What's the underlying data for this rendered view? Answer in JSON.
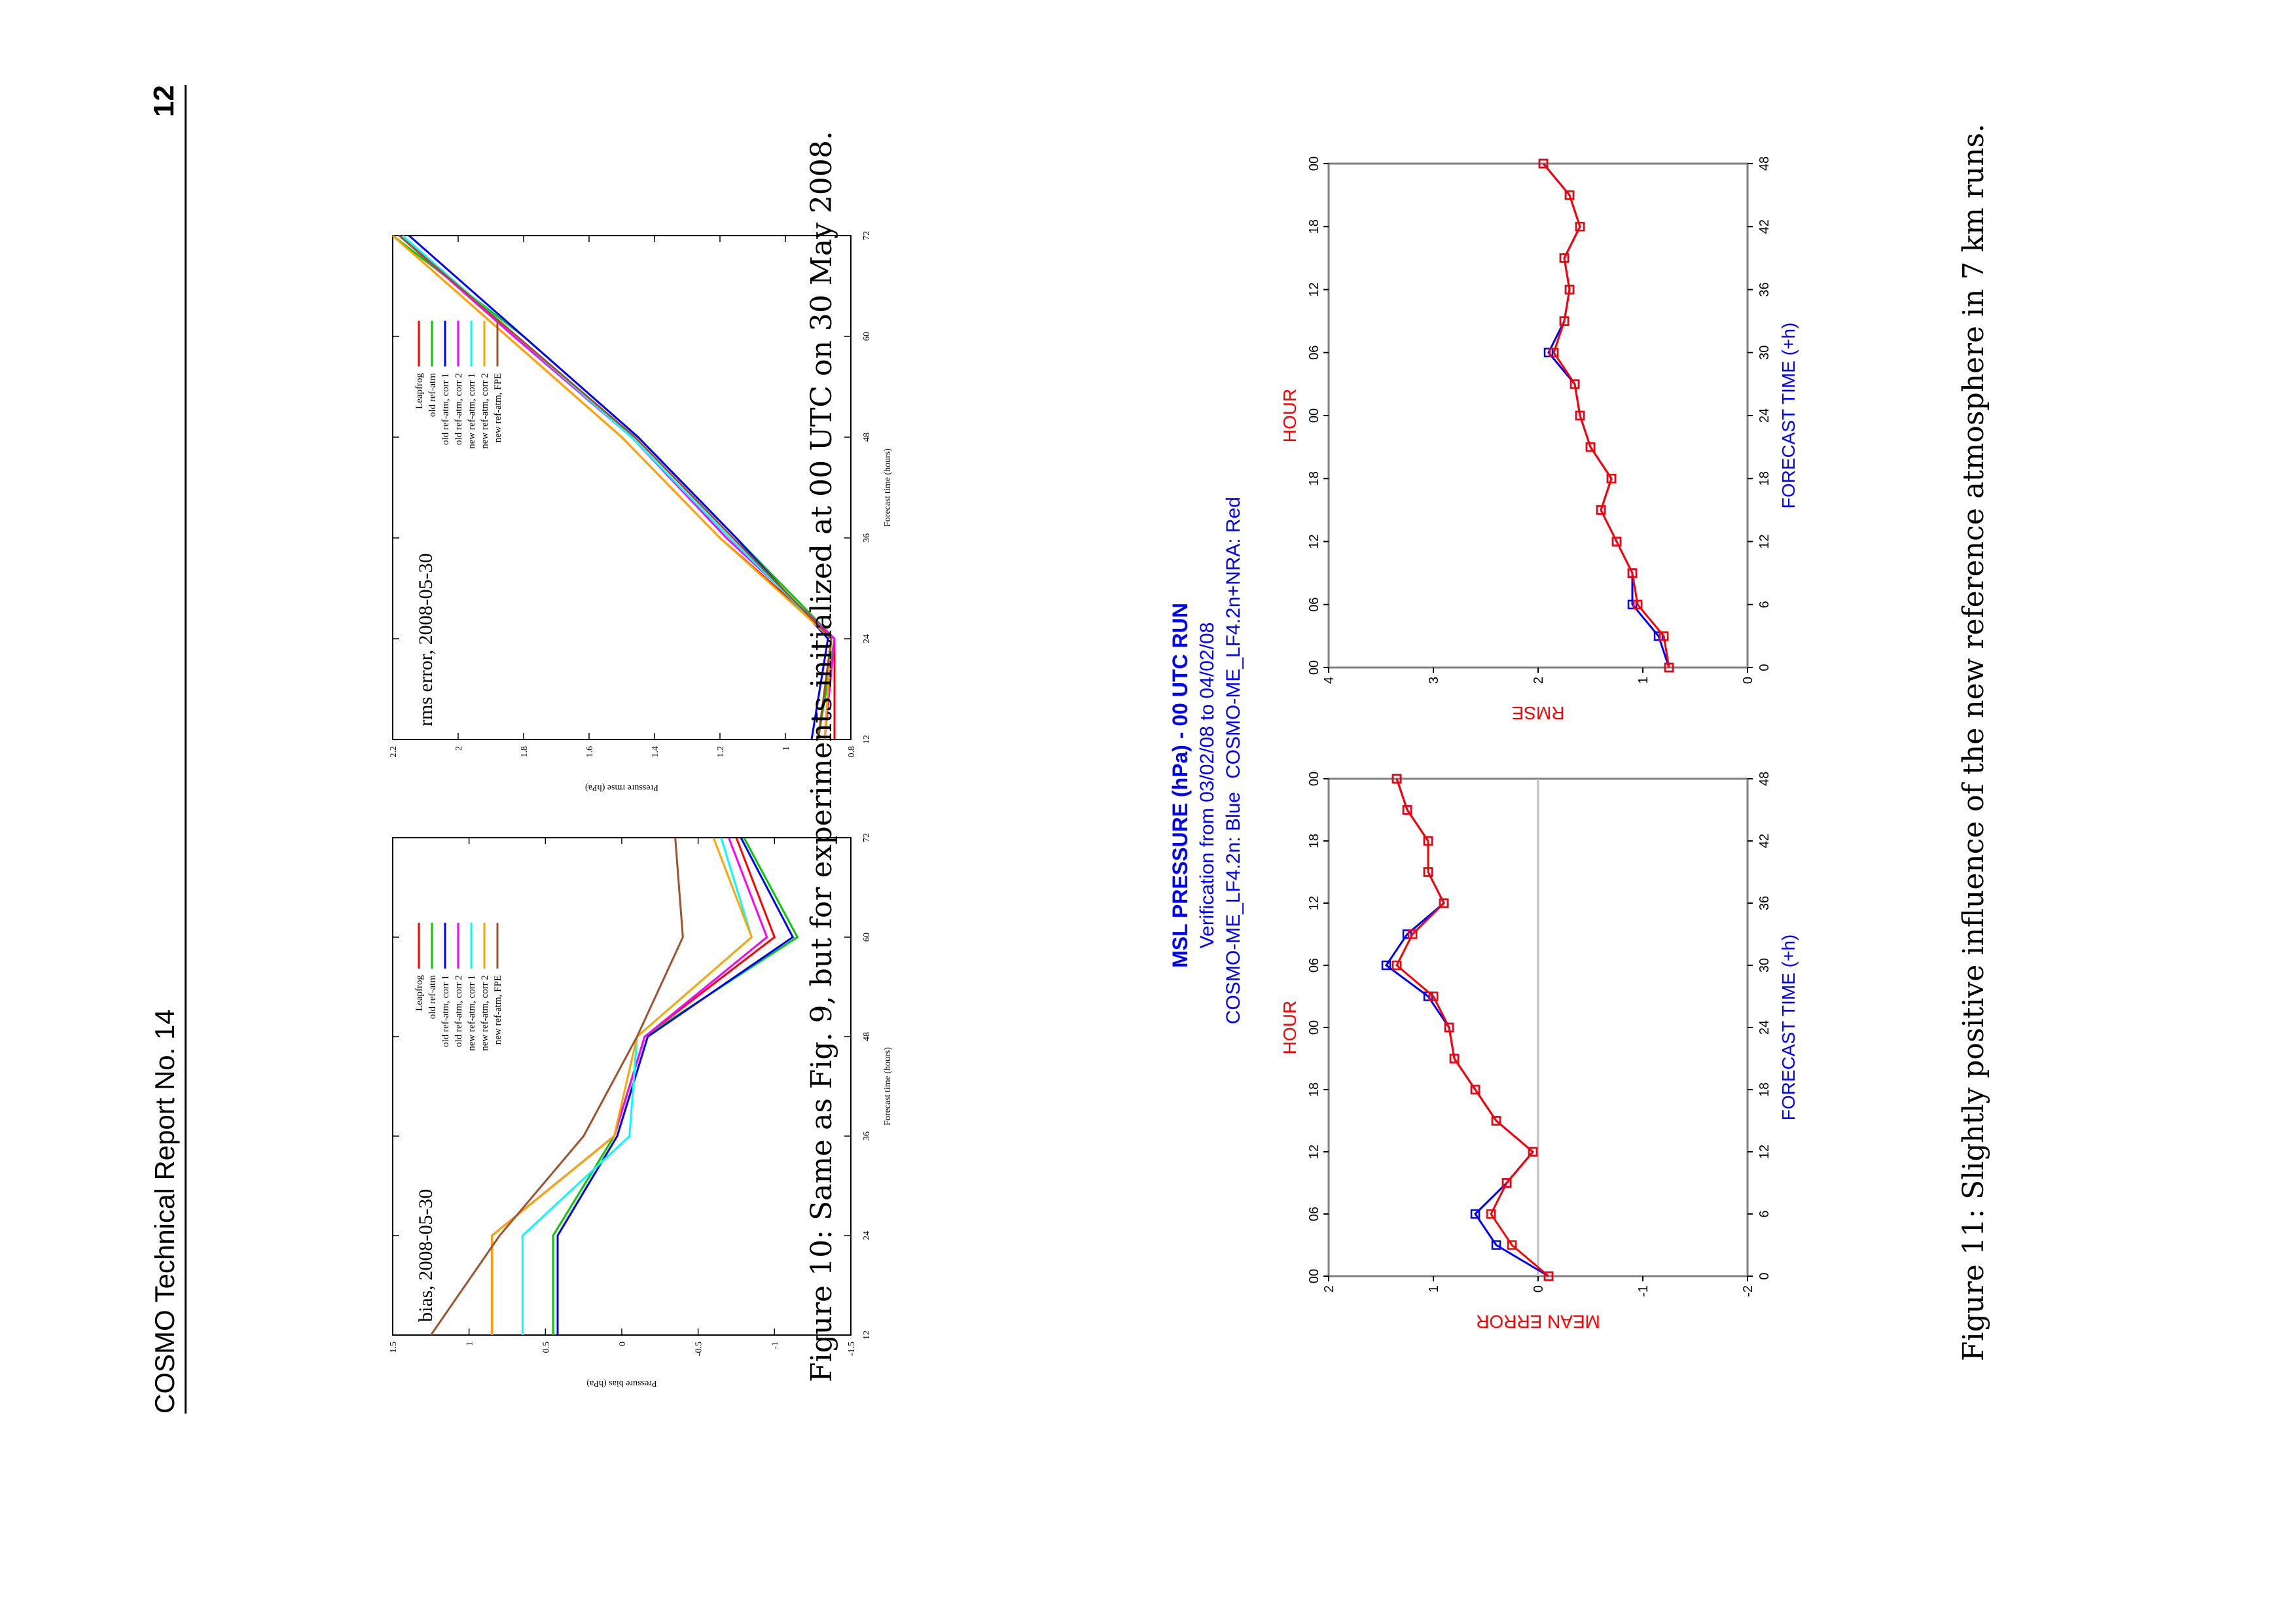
{
  "header": {
    "left": "COSMO Technical Report No. 14",
    "right": "12"
  },
  "fig10": {
    "caption": "Figure 10: Same as Fig. 9, but for experiments initialized at 00 UTC on 30 May 2008."
  },
  "fig11": {
    "caption": "Figure 11: Slightly positive influence of the new reference atmosphere in 7 km runs.",
    "title_line1": "MSL PRESSURE (hPa) - 00 UTC RUN",
    "title_line2": "Verification from 03/02/08 to 04/02/08",
    "title_line3_blue": "COSMO-ME_LF4.2n: Blue",
    "title_line3_red": "COSMO-ME_LF4.2n+NRA: Red"
  },
  "chart_data": [
    {
      "type": "line",
      "title": "bias, 2008-05-30",
      "xlabel": "Forecast time (hours)",
      "ylabel": "Pressure bias (hPa)",
      "xlim": [
        12,
        72
      ],
      "ylim": [
        -1.5,
        1.5
      ],
      "xticks": [
        "12",
        "24",
        "36",
        "48",
        "60",
        "72"
      ],
      "yticks": [
        "-1.5",
        "-1",
        "-0.5",
        "0",
        "0.5",
        "1",
        "1.5"
      ],
      "legend_position": "top-right",
      "x": [
        12,
        24,
        36,
        48,
        60,
        72
      ],
      "series": [
        {
          "name": "Leapfrog",
          "color": "#ff0000",
          "values": [
            0.85,
            0.85,
            0.05,
            -0.15,
            -1.0,
            -0.75
          ]
        },
        {
          "name": "old ref-atm",
          "color": "#00cc00",
          "values": [
            0.45,
            0.45,
            0.05,
            -0.15,
            -1.15,
            -0.8
          ]
        },
        {
          "name": "old ref-atm, corr 1",
          "color": "#0000ff",
          "values": [
            0.42,
            0.42,
            0.03,
            -0.17,
            -1.12,
            -0.78
          ]
        },
        {
          "name": "old ref-atm, corr 2",
          "color": "#ff00ff",
          "values": [
            0.85,
            0.85,
            0.05,
            -0.15,
            -0.95,
            -0.7
          ]
        },
        {
          "name": "new ref-atm, corr 1",
          "color": "#00ffff",
          "values": [
            0.65,
            0.65,
            -0.05,
            -0.1,
            -0.85,
            -0.65
          ]
        },
        {
          "name": "new ref-atm, corr 2",
          "color": "#ffa500",
          "values": [
            0.85,
            0.85,
            0.05,
            -0.1,
            -0.85,
            -0.6
          ]
        },
        {
          "name": "new ref-atm, FPE",
          "color": "#a0522d",
          "values": [
            1.25,
            0.8,
            0.25,
            -0.1,
            -0.4,
            -0.35
          ]
        }
      ]
    },
    {
      "type": "line",
      "title": "rms error, 2008-05-30",
      "xlabel": "Forecast time (hours)",
      "ylabel": "Pressure rmse (hPa)",
      "xlim": [
        12,
        72
      ],
      "ylim": [
        0.8,
        2.2
      ],
      "xticks": [
        "12",
        "24",
        "36",
        "48",
        "60",
        "72"
      ],
      "yticks": [
        "0.8",
        "1",
        "1.2",
        "1.4",
        "1.6",
        "1.8",
        "2",
        "2.2"
      ],
      "legend_position": "top-right",
      "x": [
        12,
        24,
        36,
        48,
        60,
        72
      ],
      "series": [
        {
          "name": "Leapfrog",
          "color": "#ff0000",
          "values": [
            0.85,
            0.85,
            1.2,
            1.5,
            1.85,
            2.2
          ]
        },
        {
          "name": "old ref-atm",
          "color": "#00cc00",
          "values": [
            0.9,
            0.85,
            1.15,
            1.45,
            1.8,
            2.2
          ]
        },
        {
          "name": "old ref-atm, corr 1",
          "color": "#0000ff",
          "values": [
            0.92,
            0.87,
            1.15,
            1.45,
            1.8,
            2.15
          ]
        },
        {
          "name": "old ref-atm, corr 2",
          "color": "#ff00ff",
          "values": [
            0.88,
            0.85,
            1.18,
            1.47,
            1.83,
            2.18
          ]
        },
        {
          "name": "new ref-atm, corr 1",
          "color": "#00ffff",
          "values": [
            0.88,
            0.86,
            1.17,
            1.47,
            1.82,
            2.17
          ]
        },
        {
          "name": "new ref-atm, corr 2",
          "color": "#ffa500",
          "values": [
            0.88,
            0.86,
            1.2,
            1.5,
            1.85,
            2.2
          ]
        },
        {
          "name": "new ref-atm, FPE",
          "color": "#a0522d",
          "values": [
            0.9,
            0.86,
            1.16,
            1.46,
            1.82,
            2.18
          ]
        }
      ]
    },
    {
      "type": "line",
      "title": "",
      "xlabel": "FORECAST TIME (+h)",
      "x2label": "HOUR",
      "ylabel": "MEAN ERROR",
      "xlim": [
        0,
        48
      ],
      "ylim": [
        -2,
        2
      ],
      "xticks": [
        "0",
        "6",
        "12",
        "18",
        "24",
        "30",
        "36",
        "42",
        "48"
      ],
      "x2ticks": [
        "00",
        "06",
        "12",
        "18",
        "00",
        "06",
        "12",
        "18",
        "00"
      ],
      "yticks": [
        "-2",
        "-1",
        "0",
        "1",
        "2"
      ],
      "x": [
        0,
        3,
        6,
        9,
        12,
        15,
        18,
        21,
        24,
        27,
        30,
        33,
        36,
        39,
        42,
        45,
        48
      ],
      "series": [
        {
          "name": "COSMO-ME_LF4.2n",
          "color": "#0000ff",
          "values": [
            -0.1,
            0.4,
            0.6,
            0.3,
            0.05,
            0.4,
            0.6,
            0.8,
            0.85,
            1.05,
            1.45,
            1.25,
            0.9,
            1.05,
            1.05,
            1.25,
            1.35
          ]
        },
        {
          "name": "COSMO-ME_LF4.2n+NRA",
          "color": "#ff0000",
          "values": [
            -0.1,
            0.25,
            0.45,
            0.3,
            0.05,
            0.4,
            0.6,
            0.8,
            0.85,
            1.0,
            1.35,
            1.2,
            0.9,
            1.05,
            1.05,
            1.25,
            1.35
          ]
        }
      ]
    },
    {
      "type": "line",
      "title": "",
      "xlabel": "FORECAST TIME (+h)",
      "x2label": "HOUR",
      "ylabel": "RMSE",
      "xlim": [
        0,
        48
      ],
      "ylim": [
        0,
        4
      ],
      "xticks": [
        "0",
        "6",
        "12",
        "18",
        "24",
        "30",
        "36",
        "42",
        "48"
      ],
      "x2ticks": [
        "00",
        "06",
        "12",
        "18",
        "00",
        "06",
        "12",
        "18",
        "00"
      ],
      "yticks": [
        "0",
        "1",
        "2",
        "3",
        "4"
      ],
      "x": [
        0,
        3,
        6,
        9,
        12,
        15,
        18,
        21,
        24,
        27,
        30,
        33,
        36,
        39,
        42,
        45,
        48
      ],
      "series": [
        {
          "name": "COSMO-ME_LF4.2n",
          "color": "#0000ff",
          "values": [
            0.75,
            0.85,
            1.1,
            1.1,
            1.25,
            1.4,
            1.3,
            1.5,
            1.6,
            1.65,
            1.9,
            1.75,
            1.7,
            1.75,
            1.6,
            1.7,
            1.95
          ]
        },
        {
          "name": "COSMO-ME_LF4.2n+NRA",
          "color": "#ff0000",
          "values": [
            0.75,
            0.8,
            1.05,
            1.1,
            1.25,
            1.4,
            1.3,
            1.5,
            1.6,
            1.65,
            1.85,
            1.75,
            1.7,
            1.75,
            1.6,
            1.7,
            1.95
          ]
        }
      ]
    }
  ]
}
